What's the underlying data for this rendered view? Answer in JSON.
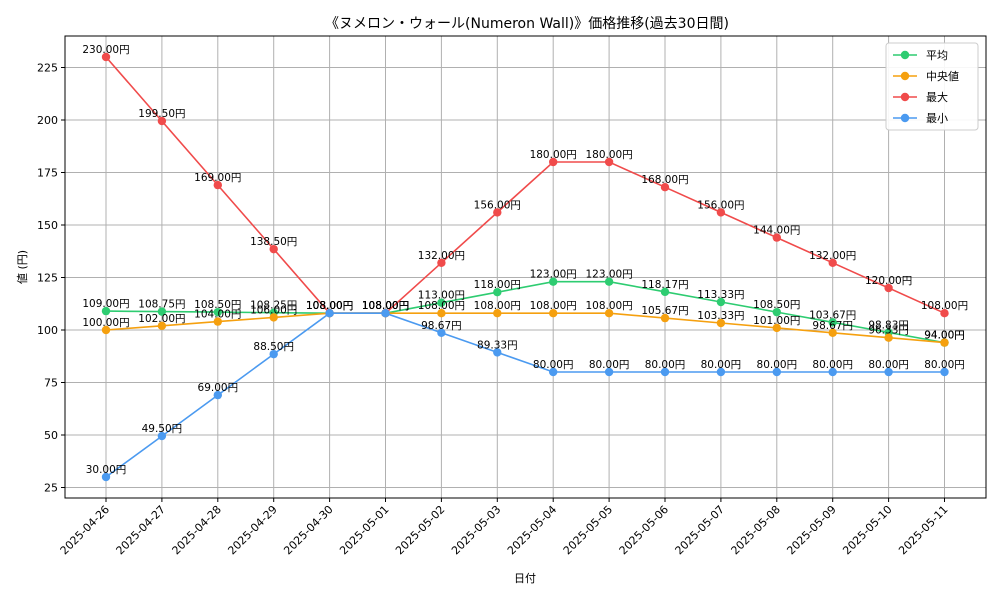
{
  "chart_data": {
    "type": "line",
    "title": "《ヌメロン・ウォール(Numeron Wall)》価格推移(過去30日間)",
    "xlabel": "日付",
    "ylabel": "値 (円)",
    "ylim": [
      20,
      240
    ],
    "yticks": [
      25,
      50,
      75,
      100,
      125,
      150,
      175,
      200,
      225
    ],
    "grid": true,
    "legend_position": "top-right",
    "label_suffix": "円",
    "categories": [
      "2025-04-26",
      "2025-04-27",
      "2025-04-28",
      "2025-04-29",
      "2025-04-30",
      "2025-05-01",
      "2025-05-02",
      "2025-05-03",
      "2025-05-04",
      "2025-05-05",
      "2025-05-06",
      "2025-05-07",
      "2025-05-08",
      "2025-05-09",
      "2025-05-10",
      "2025-05-11"
    ],
    "series": [
      {
        "name": "平均",
        "color": "#2ecc71",
        "values": [
          109.0,
          108.75,
          108.5,
          108.25,
          108.0,
          108.0,
          113.0,
          118.0,
          123.0,
          123.0,
          118.17,
          113.33,
          108.5,
          103.67,
          98.83,
          94.0
        ]
      },
      {
        "name": "中央値",
        "color": "#f5a00f",
        "values": [
          100.0,
          102.0,
          104.0,
          106.0,
          108.0,
          108.0,
          108.0,
          108.0,
          108.0,
          108.0,
          105.67,
          103.33,
          101.0,
          98.67,
          96.33,
          94.0
        ]
      },
      {
        "name": "最大",
        "color": "#f04b4b",
        "values": [
          230.0,
          199.5,
          169.0,
          138.5,
          108.0,
          108.0,
          132.0,
          156.0,
          180.0,
          180.0,
          168.0,
          156.0,
          144.0,
          132.0,
          120.0,
          108.0
        ]
      },
      {
        "name": "最小",
        "color": "#4b9af0",
        "values": [
          30.0,
          49.5,
          69.0,
          88.5,
          108.0,
          108.0,
          98.67,
          89.33,
          80.0,
          80.0,
          80.0,
          80.0,
          80.0,
          80.0,
          80.0,
          80.0
        ]
      }
    ]
  }
}
